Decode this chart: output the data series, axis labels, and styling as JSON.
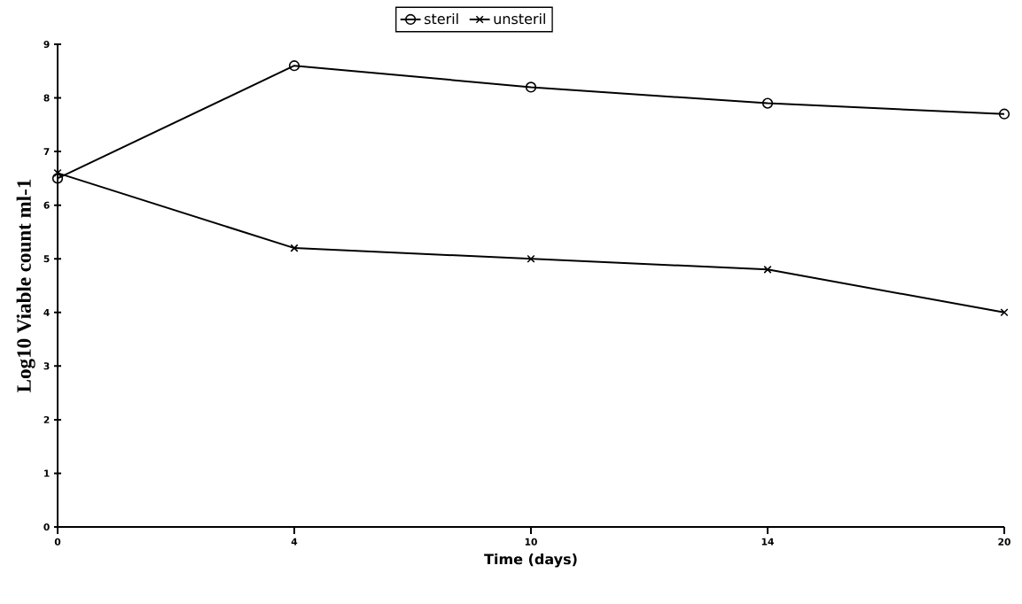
{
  "chart_data": {
    "type": "line",
    "xlabel": "Time (days)",
    "ylabel": "Log10 Viable count ml-1",
    "categories": [
      "0",
      "4",
      "10",
      "14",
      "20"
    ],
    "series": [
      {
        "name": "steril",
        "color": "#000000",
        "marker": "circle",
        "values": [
          6.5,
          8.6,
          8.2,
          7.9,
          7.7
        ]
      },
      {
        "name": "unsteril",
        "color": "#000000",
        "marker": "cross",
        "values": [
          6.6,
          5.2,
          5.0,
          4.8,
          4.0
        ]
      }
    ],
    "ylim": [
      0,
      9
    ],
    "yticks": [
      0,
      1,
      2,
      3,
      4,
      5,
      6,
      7,
      8,
      9
    ],
    "grid": false,
    "legend": "top",
    "line_style": "solid"
  }
}
